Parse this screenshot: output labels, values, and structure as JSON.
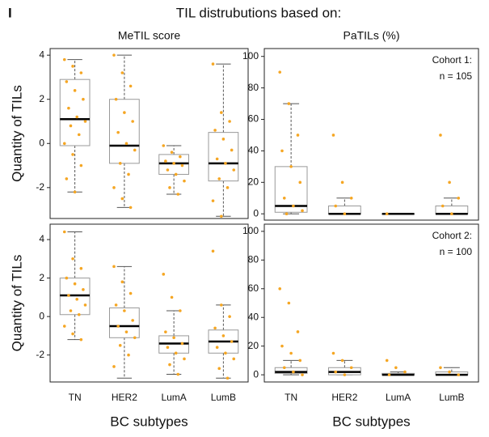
{
  "panel_label": "I",
  "figure_title": "TIL distrubutions based on:",
  "chart_data": [
    {
      "type": "box",
      "title": "MeTIL score",
      "ylabel": "Quantity of TILs",
      "ylim": [
        -3.4,
        4.3
      ],
      "yticks": [
        4,
        2,
        0,
        -2
      ],
      "min": [
        -2.2,
        -2.9,
        -2.3,
        -3.3
      ],
      "q1": [
        -0.1,
        -0.9,
        -1.4,
        -1.7
      ],
      "median": [
        1.1,
        -0.1,
        -0.9,
        -0.9
      ],
      "q3": [
        2.9,
        2.0,
        -0.5,
        0.5
      ],
      "max": [
        3.8,
        4.0,
        -0.1,
        3.6
      ],
      "points": [
        [
          3.8,
          3.5,
          3.2,
          2.8,
          2.4,
          2.0,
          1.6,
          1.2,
          1.0,
          0.8,
          0.4,
          0,
          -0.5,
          -1.0,
          -1.6,
          -2.2
        ],
        [
          4.0,
          3.2,
          2.6,
          2.0,
          1.4,
          1.0,
          0.5,
          0,
          -0.3,
          -0.9,
          -1.4,
          -2.0,
          -2.5,
          -2.9
        ],
        [
          -0.1,
          -0.4,
          -0.6,
          -0.8,
          -0.9,
          -1.0,
          -1.2,
          -1.4,
          -1.7,
          -2.0,
          -2.3
        ],
        [
          3.6,
          1.4,
          1.0,
          0.6,
          0.2,
          -0.3,
          -0.7,
          -0.9,
          -1.2,
          -1.6,
          -2.0,
          -2.6,
          -3.3
        ]
      ],
      "point_color": "#f5a623",
      "box_color": "#999999",
      "median_color": "#000000"
    },
    {
      "type": "box",
      "title": "PaTILs (%)",
      "annotation": [
        "Cohort 1:",
        "n = 105"
      ],
      "ylim": [
        -4,
        105
      ],
      "yticks": [
        0,
        20,
        40,
        60,
        80,
        100
      ],
      "min": [
        0,
        0,
        0,
        0
      ],
      "q1": [
        1,
        0,
        0,
        0
      ],
      "median": [
        5,
        0,
        0,
        0
      ],
      "q3": [
        30,
        5,
        0,
        5
      ],
      "max": [
        70,
        10,
        0,
        10
      ],
      "points": [
        [
          90,
          70,
          50,
          40,
          30,
          20,
          10,
          5,
          2,
          0
        ],
        [
          50,
          20,
          10,
          5,
          0
        ],
        [
          0
        ],
        [
          50,
          20,
          10,
          5,
          0
        ]
      ],
      "point_color": "#f5a623",
      "box_color": "#999999",
      "median_color": "#000000"
    },
    {
      "type": "box",
      "ylabel": "Quantity of TILs",
      "xlabel": "BC subtypes",
      "categories": [
        "TN",
        "HER2",
        "LumA",
        "LumB"
      ],
      "ylim": [
        -3.4,
        4.8
      ],
      "yticks": [
        4,
        2,
        0,
        -2
      ],
      "min": [
        -1.2,
        -3.2,
        -3.0,
        -3.2
      ],
      "q1": [
        0.1,
        -1.1,
        -1.9,
        -1.9
      ],
      "median": [
        1.1,
        -0.5,
        -1.4,
        -1.3
      ],
      "q3": [
        2.0,
        0.45,
        -1.0,
        -0.7
      ],
      "max": [
        4.4,
        2.6,
        0.3,
        0.6
      ],
      "points": [
        [
          4.4,
          3.0,
          2.5,
          2.0,
          1.7,
          1.4,
          1.1,
          0.9,
          0.6,
          0.3,
          0.1,
          -0.5,
          -0.9,
          -1.2
        ],
        [
          2.6,
          1.8,
          1.2,
          0.6,
          0.3,
          -0.2,
          -0.5,
          -0.8,
          -1.1,
          -1.5,
          -2.0,
          -2.6
        ],
        [
          2.2,
          1.0,
          0.3,
          -0.8,
          -1.1,
          -1.4,
          -1.6,
          -1.9,
          -2.2,
          -2.5,
          -3.0
        ],
        [
          3.4,
          0.6,
          0,
          -0.6,
          -1.0,
          -1.3,
          -1.6,
          -1.9,
          -2.2,
          -2.7,
          -3.2
        ]
      ],
      "point_color": "#f5a623",
      "box_color": "#999999",
      "median_color": "#000000"
    },
    {
      "type": "box",
      "annotation": [
        "Cohort 2:",
        "n = 100"
      ],
      "xlabel": "BC subtypes",
      "categories": [
        "TN",
        "HER2",
        "LumA",
        "LumB"
      ],
      "ylim": [
        -5,
        105
      ],
      "yticks": [
        0,
        20,
        40,
        60,
        80,
        100
      ],
      "min": [
        0,
        0,
        0,
        0
      ],
      "q1": [
        1,
        0,
        0,
        0
      ],
      "median": [
        2,
        2,
        0,
        0
      ],
      "q3": [
        5,
        5,
        1,
        2
      ],
      "max": [
        10,
        10,
        2,
        5
      ],
      "points": [
        [
          60,
          50,
          30,
          20,
          15,
          10,
          5,
          2,
          0
        ],
        [
          15,
          10,
          5,
          2,
          0
        ],
        [
          10,
          5,
          2,
          0
        ],
        [
          5,
          2,
          0
        ]
      ],
      "point_color": "#f5a623",
      "box_color": "#999999",
      "median_color": "#000000"
    }
  ]
}
